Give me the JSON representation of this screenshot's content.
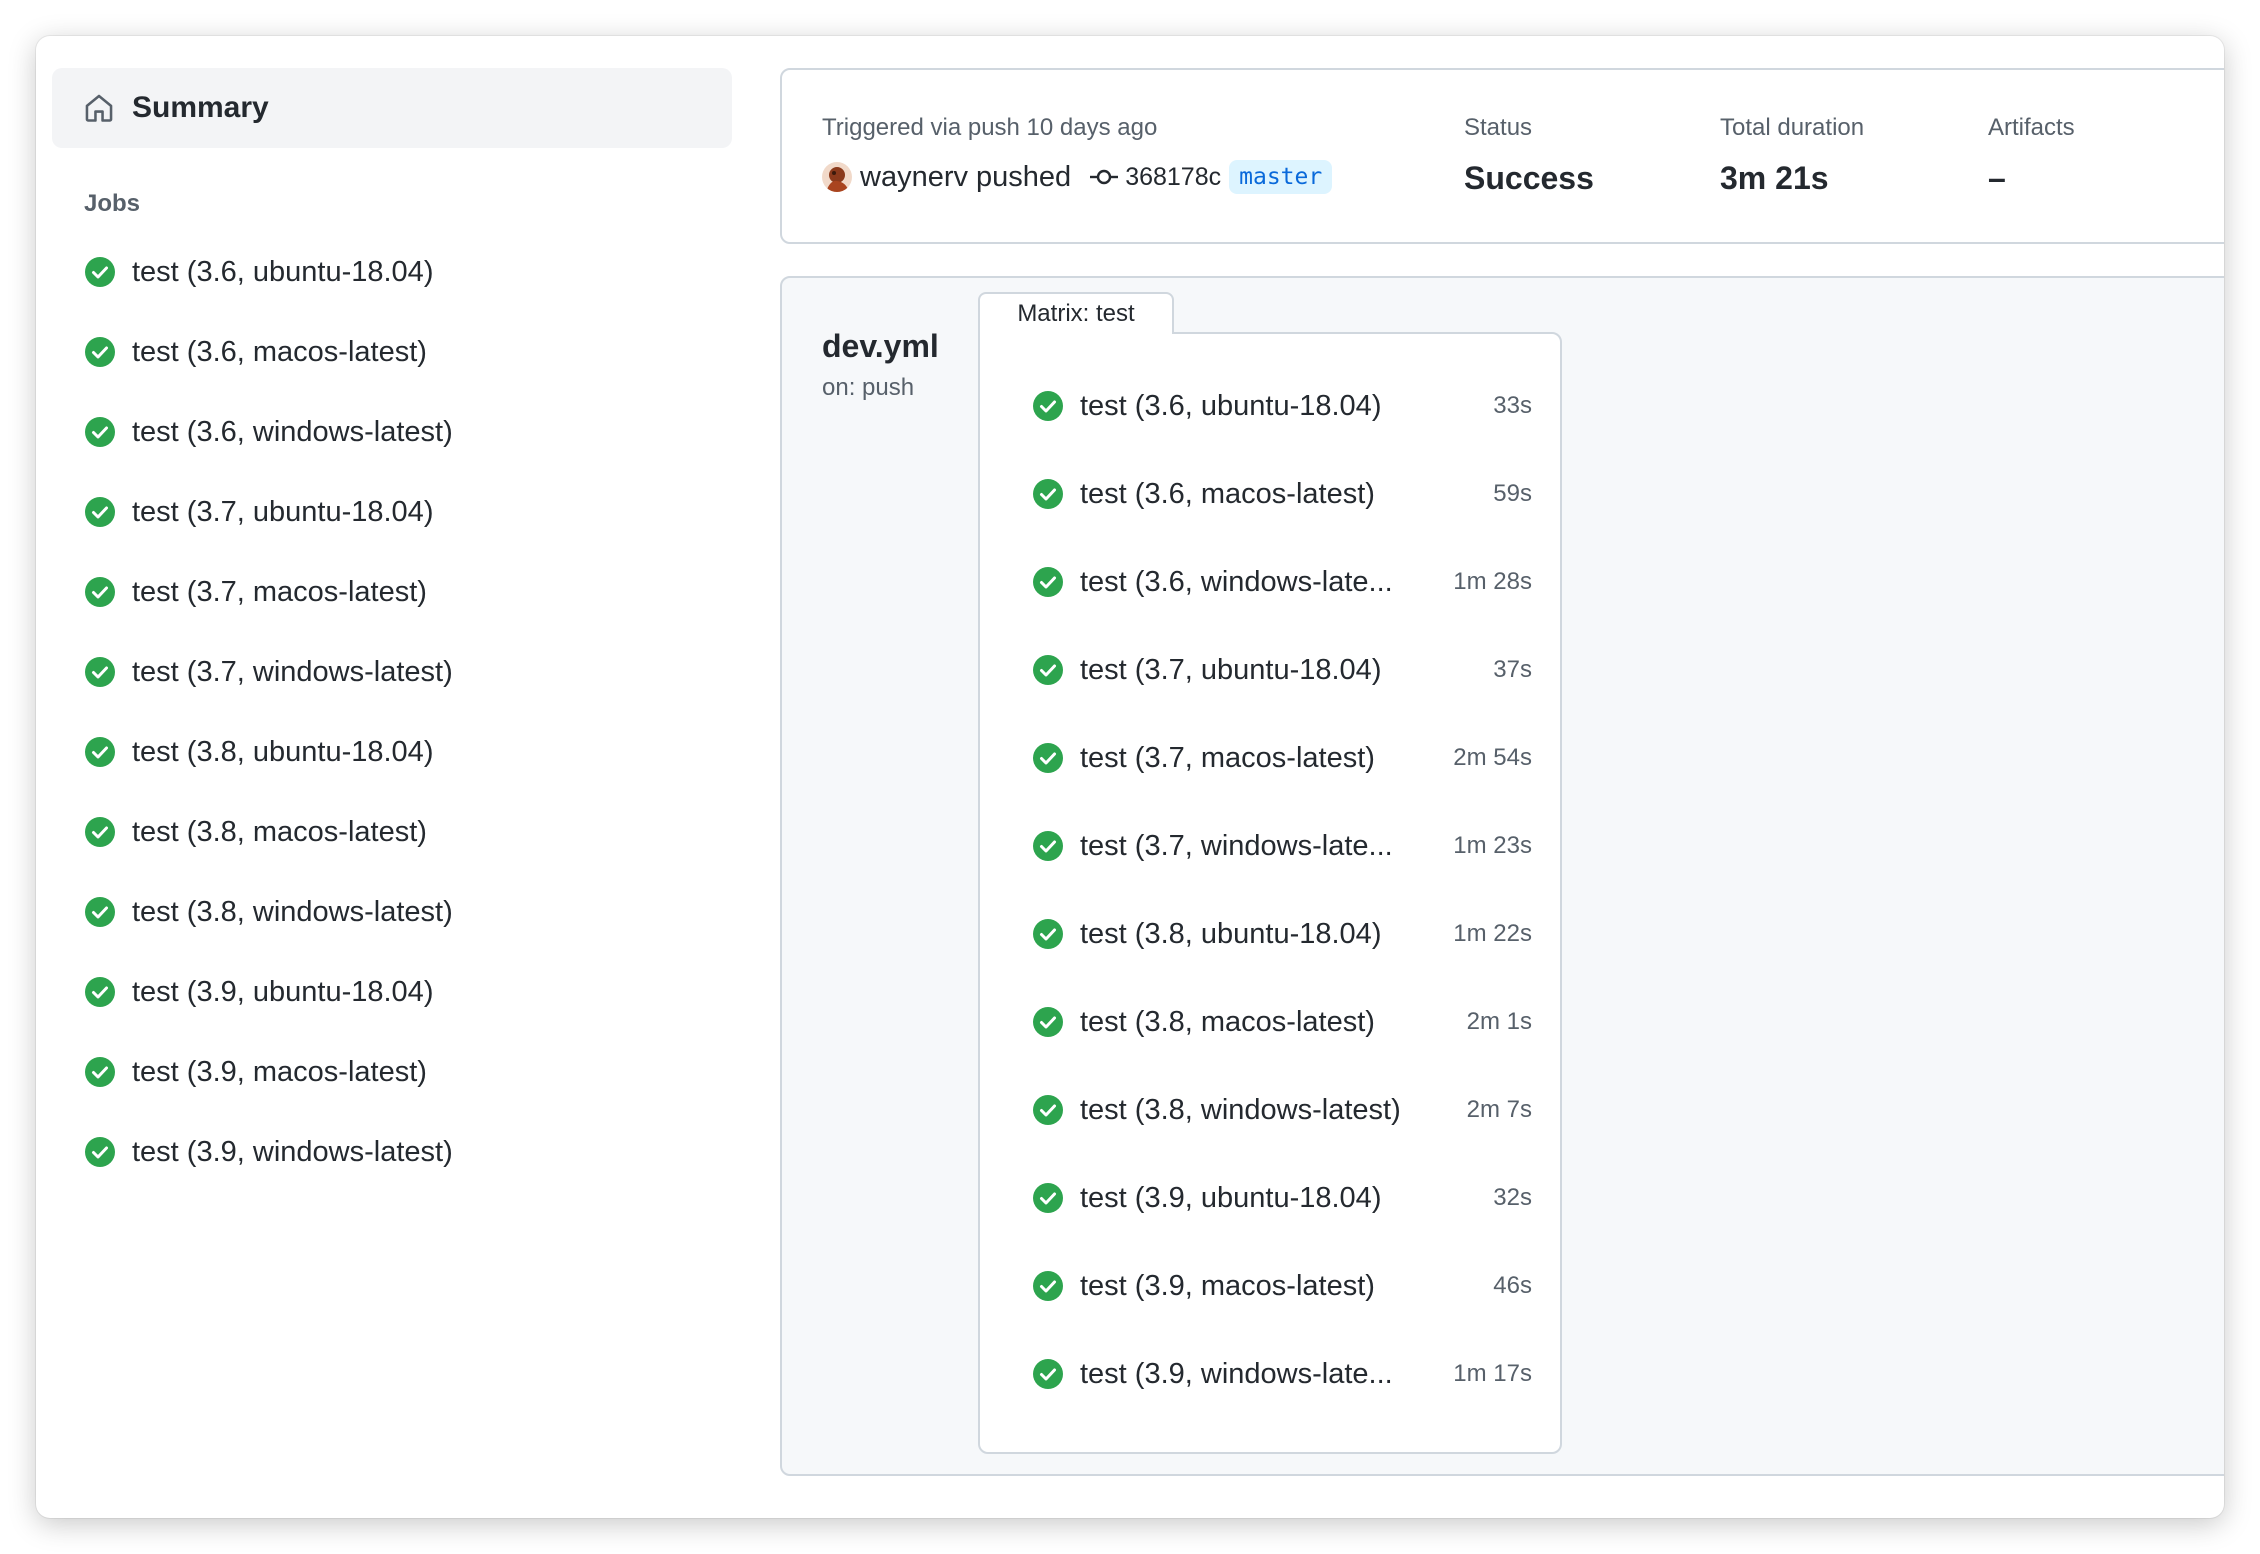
{
  "colors": {
    "success": "#2da44e",
    "branch_text": "#0969da",
    "branch_bg": "#ddf4ff"
  },
  "sidebar": {
    "summary_label": "Summary",
    "summary_icon": "home-icon",
    "jobs_heading": "Jobs",
    "jobs": [
      {
        "name": "test (3.6, ubuntu-18.04)",
        "status": "success"
      },
      {
        "name": "test (3.6, macos-latest)",
        "status": "success"
      },
      {
        "name": "test (3.6, windows-latest)",
        "status": "success"
      },
      {
        "name": "test (3.7, ubuntu-18.04)",
        "status": "success"
      },
      {
        "name": "test (3.7, macos-latest)",
        "status": "success"
      },
      {
        "name": "test (3.7, windows-latest)",
        "status": "success"
      },
      {
        "name": "test (3.8, ubuntu-18.04)",
        "status": "success"
      },
      {
        "name": "test (3.8, macos-latest)",
        "status": "success"
      },
      {
        "name": "test (3.8, windows-latest)",
        "status": "success"
      },
      {
        "name": "test (3.9, ubuntu-18.04)",
        "status": "success"
      },
      {
        "name": "test (3.9, macos-latest)",
        "status": "success"
      },
      {
        "name": "test (3.9, windows-latest)",
        "status": "success"
      }
    ]
  },
  "summary": {
    "trigger": "Triggered via push 10 days ago",
    "actor": "waynerv pushed",
    "commit_sha": "368178c",
    "branch": "master",
    "status_label": "Status",
    "status_value": "Success",
    "duration_label": "Total duration",
    "duration_value": "3m 21s",
    "artifacts_label": "Artifacts",
    "artifacts_value": "–"
  },
  "workflow": {
    "file": "dev.yml",
    "trigger": "on: push",
    "matrix_label": "Matrix: test",
    "jobs": [
      {
        "name": "test (3.6, ubuntu-18.04)",
        "duration": "33s"
      },
      {
        "name": "test (3.6, macos-latest)",
        "duration": "59s"
      },
      {
        "name": "test (3.6, windows-late...",
        "duration": "1m 28s"
      },
      {
        "name": "test (3.7, ubuntu-18.04)",
        "duration": "37s"
      },
      {
        "name": "test (3.7, macos-latest)",
        "duration": "2m 54s"
      },
      {
        "name": "test (3.7, windows-late...",
        "duration": "1m 23s"
      },
      {
        "name": "test (3.8, ubuntu-18.04)",
        "duration": "1m 22s"
      },
      {
        "name": "test (3.8, macos-latest)",
        "duration": "2m 1s"
      },
      {
        "name": "test (3.8, windows-latest)",
        "duration": "2m 7s"
      },
      {
        "name": "test (3.9, ubuntu-18.04)",
        "duration": "32s"
      },
      {
        "name": "test (3.9, macos-latest)",
        "duration": "46s"
      },
      {
        "name": "test (3.9, windows-late...",
        "duration": "1m 17s"
      }
    ]
  }
}
